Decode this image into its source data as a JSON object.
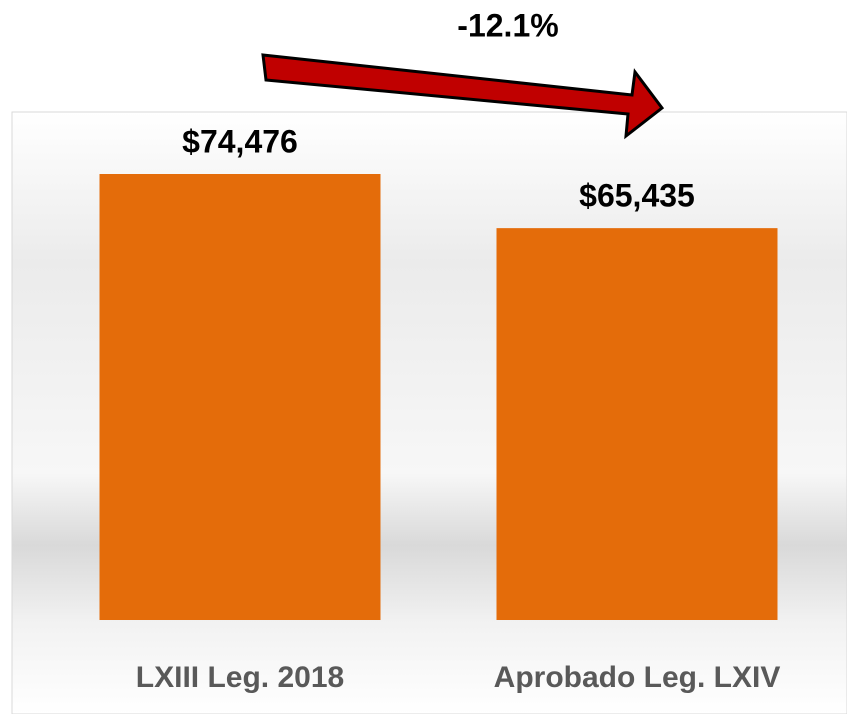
{
  "chart_data": {
    "type": "bar",
    "categories": [
      "LXIII Leg. 2018",
      "Aprobado Leg. LXIV"
    ],
    "values": [
      74476,
      65435
    ],
    "value_labels": [
      "$74,476",
      "$65,435"
    ],
    "color": "#e46c0a",
    "annotation": "-12.1%"
  }
}
